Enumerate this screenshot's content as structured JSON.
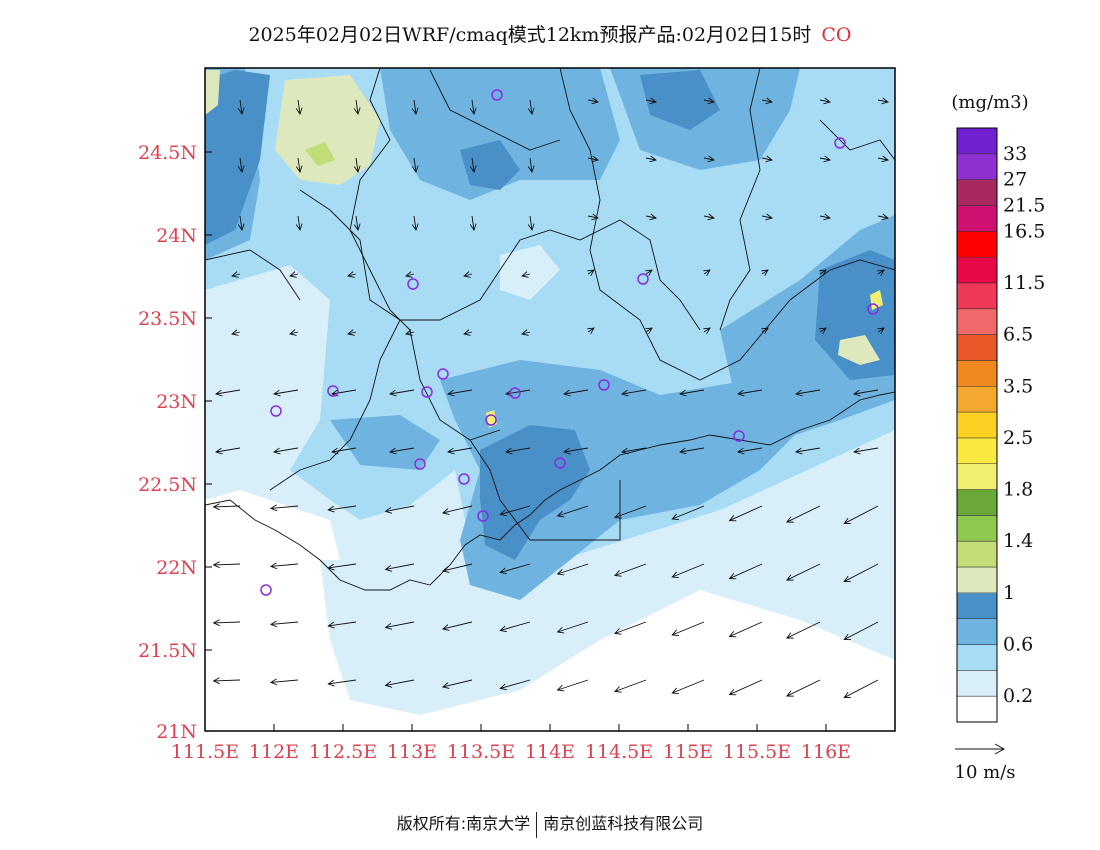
{
  "title": {
    "main": "2025年02月02日WRF/cmaq模式12km预报产品:02月02日15时",
    "pollutant": "CO"
  },
  "footer": {
    "left": "版权所有:南京大学",
    "right": "南京创蓝科技有限公司"
  },
  "map": {
    "lon_labels": [
      "111.5E",
      "112E",
      "112.5E",
      "113E",
      "113.5E",
      "114E",
      "114.5E",
      "115E",
      "115.5E",
      "116E"
    ],
    "lat_labels": [
      "24.5N",
      "24N",
      "23.5N",
      "23N",
      "22.5N",
      "22N",
      "21.5N",
      "21N"
    ],
    "axis_label_color": "#e04050",
    "station_marker_color": "#8a2be2"
  },
  "colorbar": {
    "unit": "(mg/m3)",
    "colors": [
      "#ffffff",
      "#d8eef8",
      "#a8dcf5",
      "#6fb4e0",
      "#4a90c8",
      "#dde9bc",
      "#c2dc78",
      "#8fc84e",
      "#6aa83c",
      "#f0f070",
      "#f8e840",
      "#fcd020",
      "#f5a830",
      "#f08820",
      "#e85828",
      "#f06868",
      "#f03858",
      "#e80848",
      "#ff0000",
      "#d01070",
      "#a82860",
      "#9030d0",
      "#7020d0"
    ],
    "labels": [
      "0.2",
      "0.6",
      "1",
      "1.4",
      "1.8",
      "2.5",
      "3.5",
      "6.5",
      "11.5",
      "16.5",
      "21.5",
      "27",
      "33"
    ]
  },
  "wind_legend": {
    "label": "10 m/s"
  }
}
